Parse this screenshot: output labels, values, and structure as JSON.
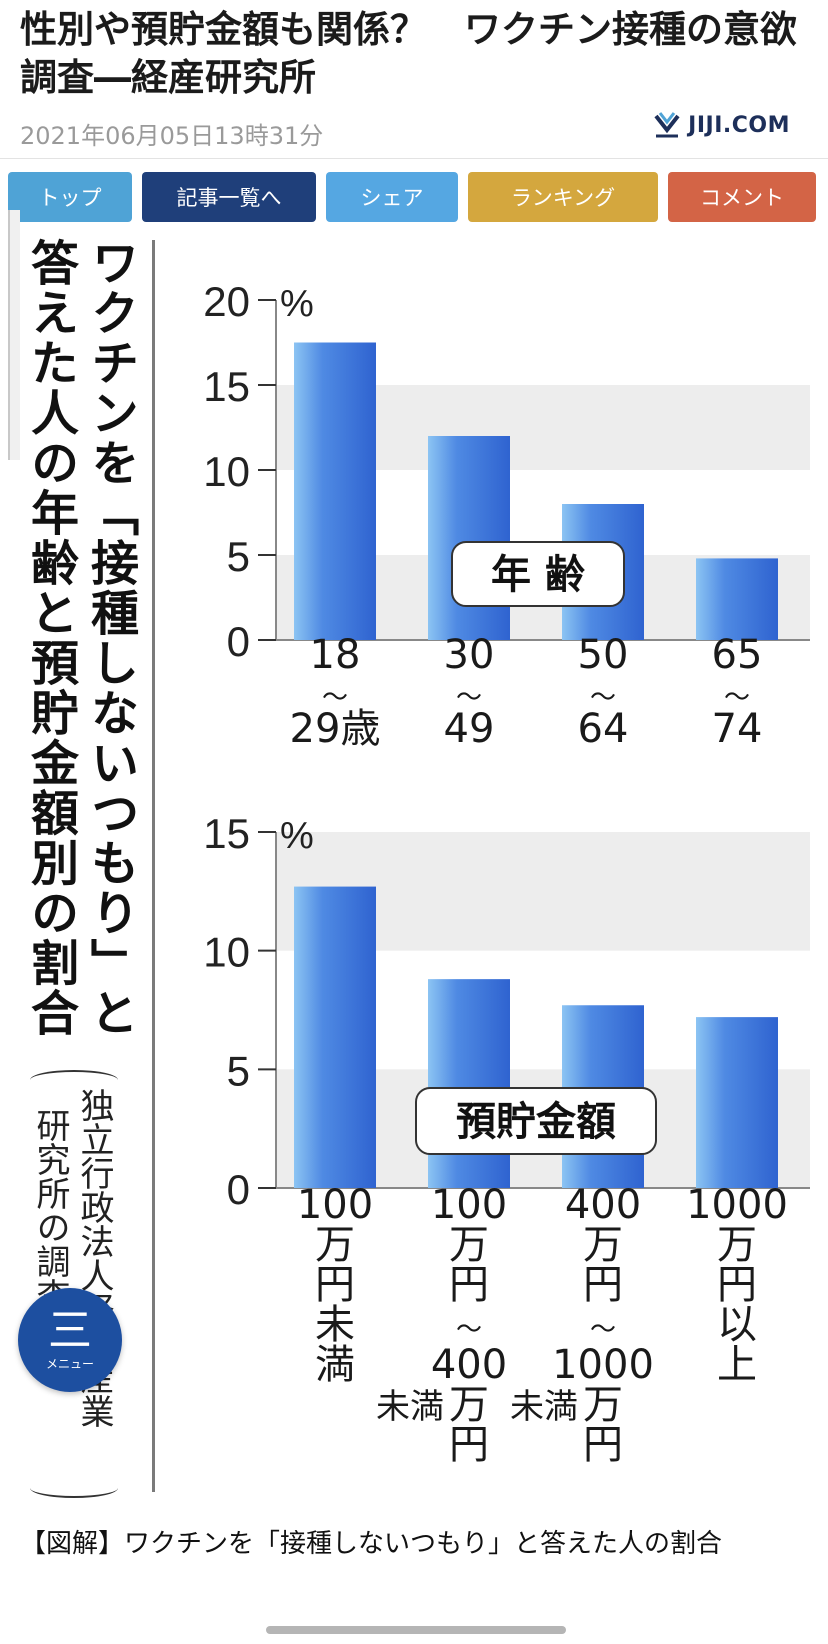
{
  "article": {
    "headline": "性別や預貯金額も関係？　ワクチン接種の意欲調査―経産研究所",
    "datetime": "2021年06月05日13時31分",
    "brand": "JIJI.COM"
  },
  "nav": {
    "top": "トップ",
    "list": "記事一覧へ",
    "share": "シェア",
    "ranking": "ランキング",
    "comment": "コメント"
  },
  "infographic": {
    "title_line1": "ワクチンを「接種しないつもり」と",
    "title_line2": "答えた人の年齢と預貯金額別の割合",
    "source_line1": "独立行政法人経済産業",
    "source_line2": "研究所の調査から"
  },
  "chart_data": [
    {
      "type": "bar",
      "title": "年 齢",
      "unit": "%",
      "ylim": [
        0,
        20
      ],
      "yticks": [
        "0",
        "5",
        "10",
        "15",
        "20"
      ],
      "categories": [
        [
          "18",
          "〜",
          "29歳"
        ],
        [
          "30",
          "〜",
          "49"
        ],
        [
          "50",
          "〜",
          "64"
        ],
        [
          "65",
          "〜",
          "74"
        ]
      ],
      "values": [
        17.5,
        12.0,
        8.0,
        4.8
      ]
    },
    {
      "type": "bar",
      "title": "預貯金額",
      "unit": "%",
      "ylim": [
        0,
        15
      ],
      "yticks": [
        "0",
        "5",
        "10",
        "15"
      ],
      "categories": [
        [
          "100",
          "万",
          "円",
          "未",
          "満"
        ],
        [
          "100",
          "万",
          "円",
          "〜",
          "400",
          "万",
          "円",
          "未満"
        ],
        [
          "400",
          "万",
          "円",
          "〜",
          "1000",
          "万",
          "円",
          "未満"
        ],
        [
          "1000",
          "万",
          "円",
          "以",
          "上"
        ]
      ],
      "values": [
        12.7,
        8.8,
        7.7,
        7.2
      ]
    }
  ],
  "caption": "【図解】ワクチンを「接種しないつもり」と答えた人の割合",
  "menu": {
    "label": "メニュー",
    "glyph": "三"
  },
  "colors": {
    "bar_dark": "#2f63d0",
    "bar_light": "#8cc4f3",
    "band": "#ededed"
  }
}
